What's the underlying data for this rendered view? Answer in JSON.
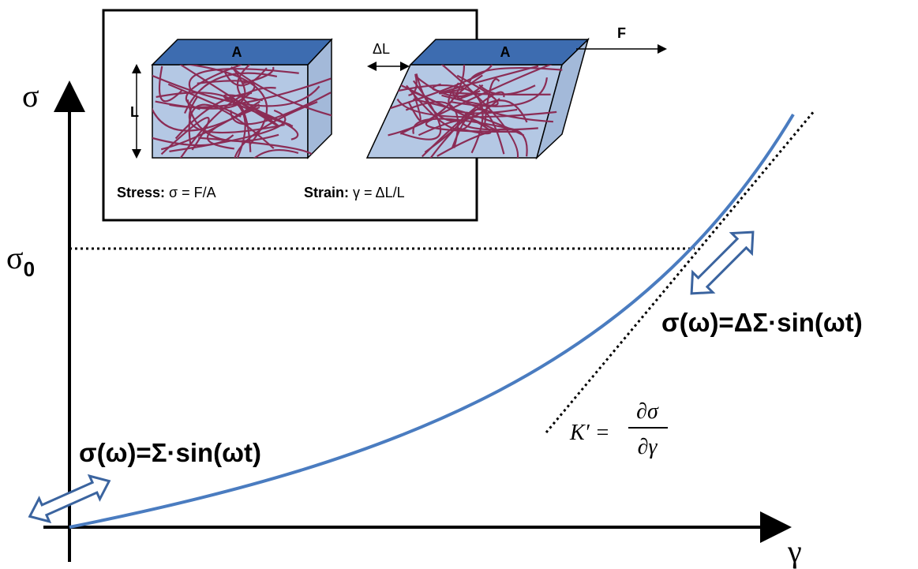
{
  "axes": {
    "y_label": "σ",
    "x_label": "γ",
    "y_marker": {
      "symbol": "σ",
      "subscript": "0"
    }
  },
  "inset": {
    "block_top_label_left": "A",
    "block_top_label_right": "A",
    "height_label": "L",
    "shift_label": "ΔL",
    "force_label": "F",
    "stress_title": "Stress:",
    "stress_formula": "σ = F/A",
    "strain_title": "Strain:",
    "strain_formula": "γ = ΔL/L"
  },
  "annotations": {
    "small_oscillation": "σ(ω)=Σ·sin(ωt)",
    "large_oscillation": "σ(ω)=ΔΣ·sin(ωt)",
    "modulus_lhs": "K′ =",
    "modulus_numerator": "∂σ",
    "modulus_denominator": "∂γ"
  }
}
